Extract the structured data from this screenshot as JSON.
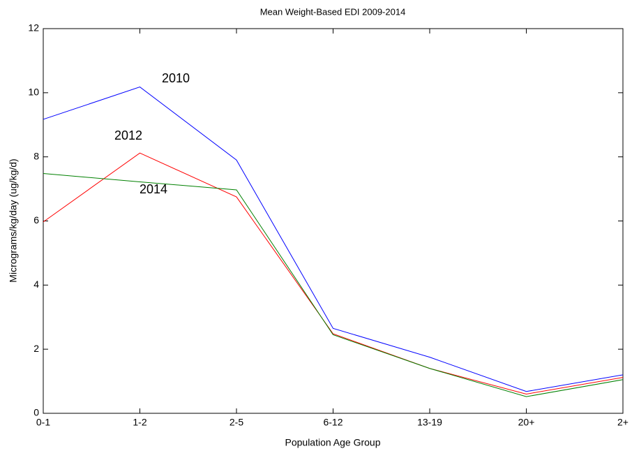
{
  "chart_data": {
    "type": "line",
    "title": "Mean Weight-Based EDI 2009-2014",
    "x_label": "Population Age Group",
    "y_label": "Micrograms/kg/day (ug/kg/d)",
    "categories": [
      "0-1",
      "1-2",
      "2-5",
      "6-12",
      "13-19",
      "20+",
      "2+"
    ],
    "series": [
      {
        "name": "2010",
        "color": "#0000ff",
        "values": [
          9.17,
          10.18,
          7.9,
          2.65,
          1.75,
          0.68,
          1.2
        ]
      },
      {
        "name": "2012",
        "color": "#ff0000",
        "values": [
          5.97,
          8.12,
          6.75,
          2.48,
          1.4,
          0.6,
          1.12
        ]
      },
      {
        "name": "2014",
        "color": "#008000",
        "values": [
          7.48,
          7.22,
          6.97,
          2.45,
          1.4,
          0.52,
          1.05
        ]
      }
    ],
    "ylim": [
      0,
      12
    ],
    "yticks": [
      0,
      2,
      4,
      6,
      8,
      10,
      12
    ],
    "grid": false
  }
}
